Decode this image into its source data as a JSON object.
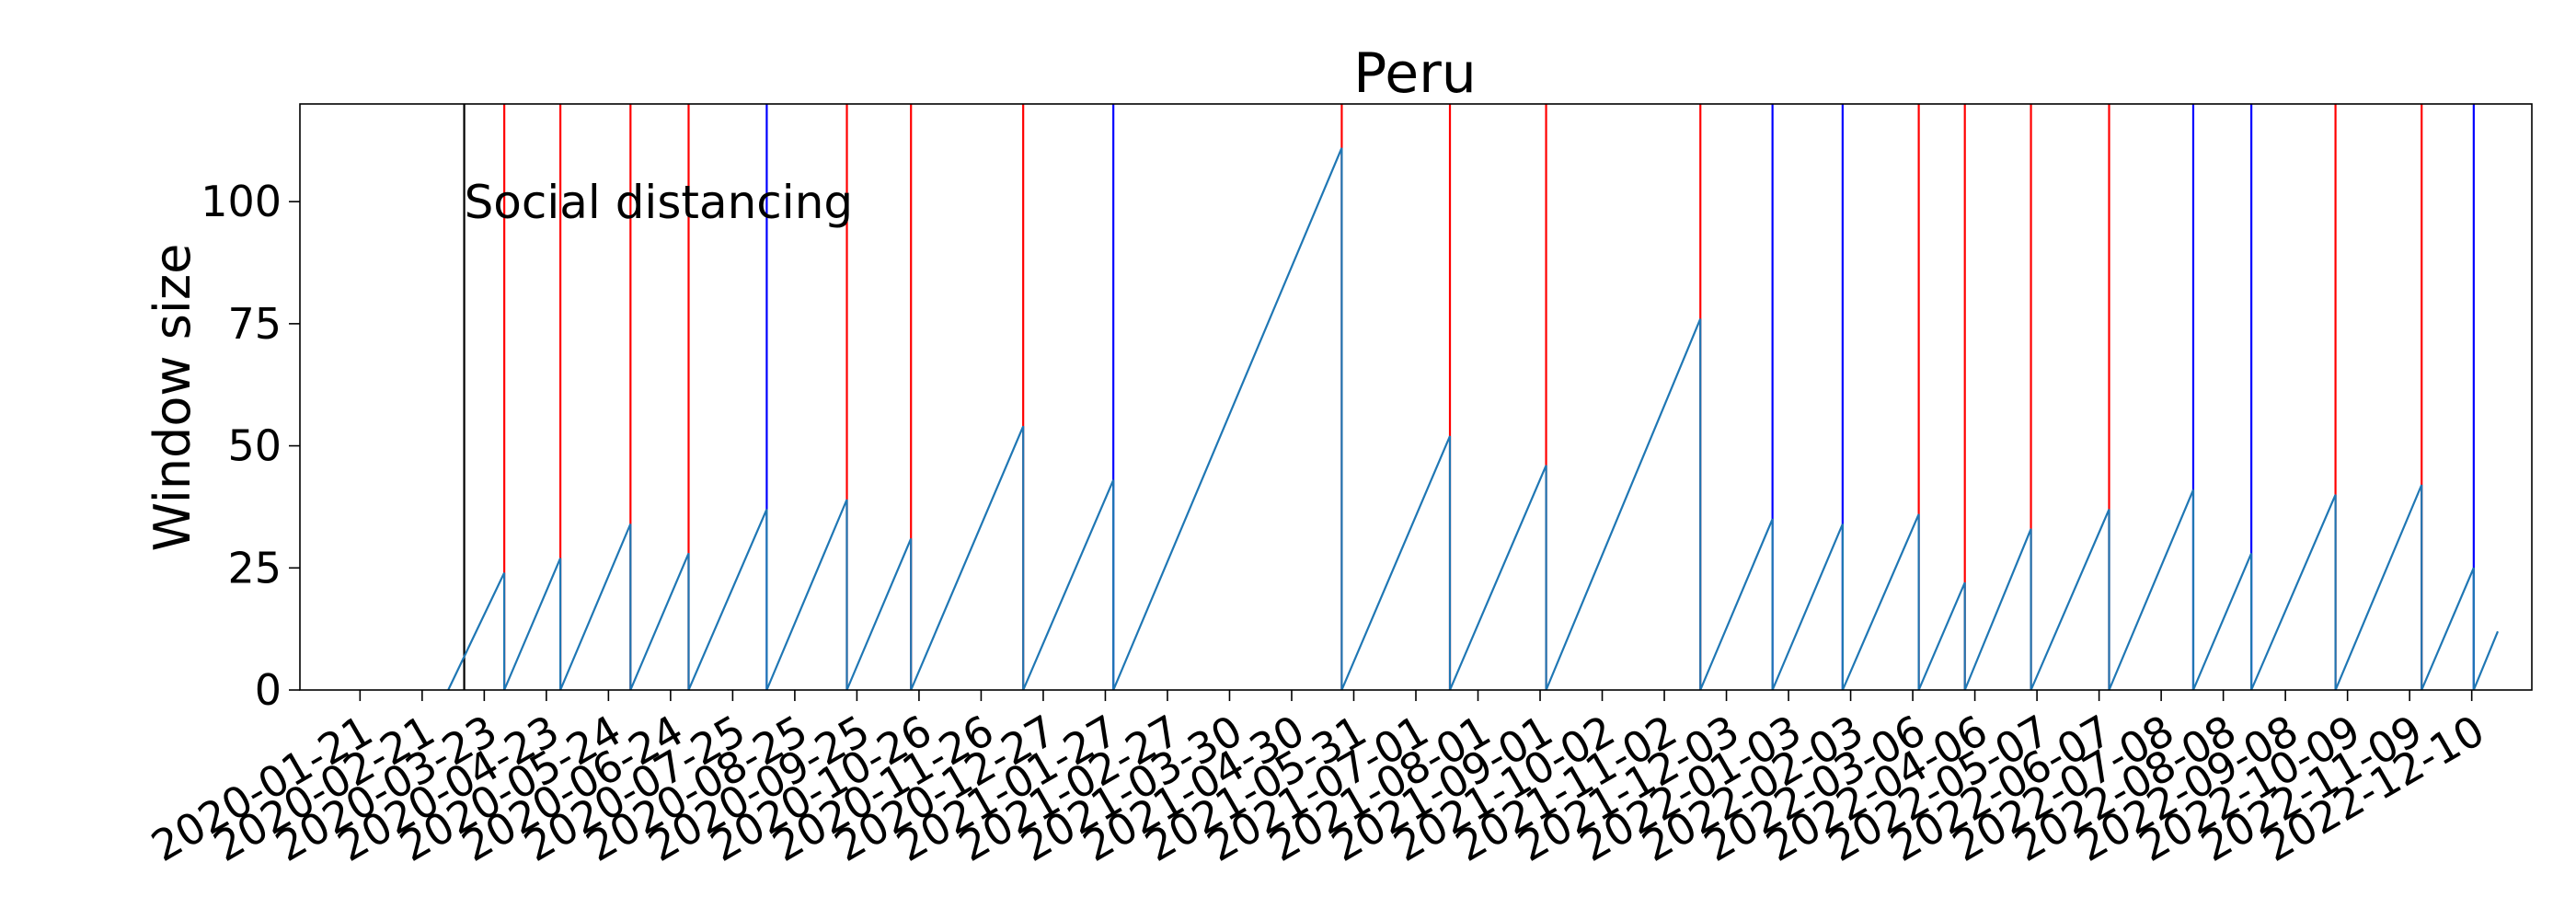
{
  "chart_data": {
    "type": "line",
    "title": "Peru",
    "xlabel": "",
    "ylabel": "Window size",
    "ylim": [
      0,
      120
    ],
    "yticks": [
      0,
      25,
      50,
      75,
      100
    ],
    "xlim": [
      "2019-12-22",
      "2023-01-09"
    ],
    "xtick_labels": [
      "2020-01-21",
      "2020-02-21",
      "2020-03-23",
      "2020-04-23",
      "2020-05-24",
      "2020-06-24",
      "2020-07-25",
      "2020-08-25",
      "2020-09-25",
      "2020-10-26",
      "2020-11-26",
      "2020-12-27",
      "2021-01-27",
      "2021-02-27",
      "2021-03-30",
      "2021-04-30",
      "2021-05-31",
      "2021-07-01",
      "2021-08-01",
      "2021-09-01",
      "2021-10-02",
      "2021-11-02",
      "2021-12-03",
      "2022-01-03",
      "2022-02-03",
      "2022-03-06",
      "2022-04-06",
      "2022-05-07",
      "2022-06-07",
      "2022-07-08",
      "2022-08-08",
      "2022-09-08",
      "2022-10-09",
      "2022-11-09",
      "2022-12-10"
    ],
    "series": [
      {
        "color": "#1f77b4",
        "points": [
          [
            "2020-03-05",
            0
          ],
          [
            "2020-04-02",
            24
          ],
          [
            "2020-04-02",
            0
          ],
          [
            "2020-04-30",
            27
          ],
          [
            "2020-04-30",
            0
          ],
          [
            "2020-06-04",
            34
          ],
          [
            "2020-06-04",
            0
          ],
          [
            "2020-07-03",
            28
          ],
          [
            "2020-07-03",
            0
          ],
          [
            "2020-08-11",
            37
          ],
          [
            "2020-08-11",
            0
          ],
          [
            "2020-09-20",
            39
          ],
          [
            "2020-09-20",
            0
          ],
          [
            "2020-10-22",
            31
          ],
          [
            "2020-10-22",
            0
          ],
          [
            "2020-12-17",
            54
          ],
          [
            "2020-12-17",
            0
          ],
          [
            "2021-01-31",
            43
          ],
          [
            "2021-01-31",
            0
          ],
          [
            "2021-05-25",
            111
          ],
          [
            "2021-05-25",
            0
          ],
          [
            "2021-07-18",
            52
          ],
          [
            "2021-07-18",
            0
          ],
          [
            "2021-09-04",
            46
          ],
          [
            "2021-09-04",
            0
          ],
          [
            "2021-11-20",
            76
          ],
          [
            "2021-11-20",
            0
          ],
          [
            "2021-12-26",
            35
          ],
          [
            "2021-12-26",
            0
          ],
          [
            "2022-01-30",
            34
          ],
          [
            "2022-01-30",
            0
          ],
          [
            "2022-03-09",
            36
          ],
          [
            "2022-03-09",
            0
          ],
          [
            "2022-04-01",
            22
          ],
          [
            "2022-04-01",
            0
          ],
          [
            "2022-05-04",
            33
          ],
          [
            "2022-05-04",
            0
          ],
          [
            "2022-06-12",
            37
          ],
          [
            "2022-06-12",
            0
          ],
          [
            "2022-07-24",
            41
          ],
          [
            "2022-07-24",
            0
          ],
          [
            "2022-08-22",
            28
          ],
          [
            "2022-08-22",
            0
          ],
          [
            "2022-10-03",
            40
          ],
          [
            "2022-10-03",
            0
          ],
          [
            "2022-11-15",
            42
          ],
          [
            "2022-11-15",
            0
          ],
          [
            "2022-12-11",
            25
          ],
          [
            "2022-12-11",
            0
          ],
          [
            "2022-12-23",
            12
          ]
        ]
      }
    ],
    "vlines": [
      {
        "date": "2020-03-13",
        "color": "#000000"
      },
      {
        "date": "2020-04-02",
        "color": "#ff0000"
      },
      {
        "date": "2020-04-30",
        "color": "#ff0000"
      },
      {
        "date": "2020-06-04",
        "color": "#ff0000"
      },
      {
        "date": "2020-07-03",
        "color": "#ff0000"
      },
      {
        "date": "2020-08-11",
        "color": "#0000ff"
      },
      {
        "date": "2020-09-20",
        "color": "#ff0000"
      },
      {
        "date": "2020-10-22",
        "color": "#ff0000"
      },
      {
        "date": "2020-12-17",
        "color": "#ff0000"
      },
      {
        "date": "2021-01-31",
        "color": "#0000ff"
      },
      {
        "date": "2021-07-18",
        "color": "#ff0000"
      },
      {
        "date": "2021-05-25",
        "color": "#ff0000"
      },
      {
        "date": "2021-09-04",
        "color": "#ff0000"
      },
      {
        "date": "2021-11-20",
        "color": "#ff0000"
      },
      {
        "date": "2021-12-26",
        "color": "#0000ff"
      },
      {
        "date": "2022-01-30",
        "color": "#0000ff"
      },
      {
        "date": "2022-03-09",
        "color": "#ff0000"
      },
      {
        "date": "2022-04-01",
        "color": "#ff0000"
      },
      {
        "date": "2022-05-04",
        "color": "#ff0000"
      },
      {
        "date": "2022-06-12",
        "color": "#ff0000"
      },
      {
        "date": "2022-07-24",
        "color": "#0000ff"
      },
      {
        "date": "2022-08-22",
        "color": "#0000ff"
      },
      {
        "date": "2022-10-03",
        "color": "#ff0000"
      },
      {
        "date": "2022-11-15",
        "color": "#ff0000"
      },
      {
        "date": "2022-12-11",
        "color": "#0000ff"
      }
    ],
    "annotations": [
      {
        "text": "Social distancing",
        "date": "2020-03-13",
        "y": 100
      }
    ],
    "grid": false,
    "legend": "none"
  }
}
